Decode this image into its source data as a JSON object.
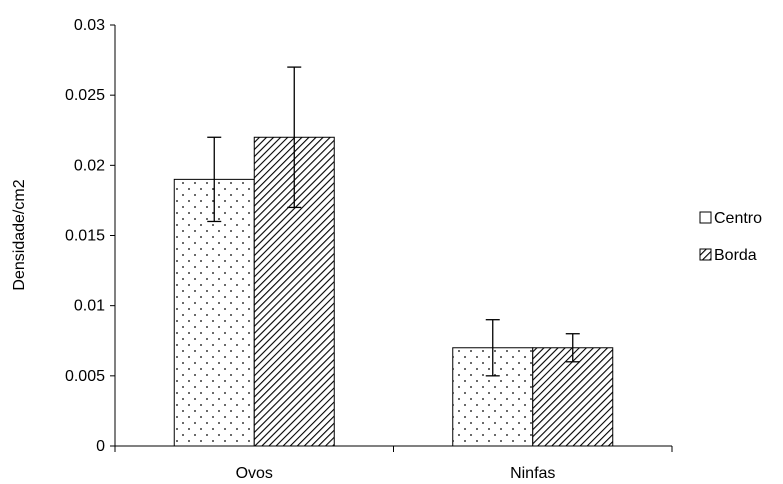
{
  "chart_data": {
    "type": "bar",
    "title": "",
    "xlabel": "",
    "ylabel": "Densidade/cm2",
    "categories": [
      "Ovos",
      "Ninfas"
    ],
    "ylim": [
      0,
      0.03
    ],
    "yticks": [
      "0",
      "0.005",
      "0.01",
      "0.015",
      "0.02",
      "0.025",
      "0.03"
    ],
    "grid": false,
    "legend": "right",
    "series": [
      {
        "name": "Centro",
        "pattern": "dots",
        "values": [
          0.019,
          0.007
        ],
        "error_low": [
          0.016,
          0.005
        ],
        "error_high": [
          0.022,
          0.009
        ]
      },
      {
        "name": "Borda",
        "pattern": "diagonal-hatch",
        "values": [
          0.022,
          0.007
        ],
        "error_low": [
          0.017,
          0.006
        ],
        "error_high": [
          0.027,
          0.008
        ]
      }
    ],
    "colors": {
      "bar_fill": "#ffffff",
      "bar_stroke": "#000000",
      "pattern_ink": "#000000"
    }
  }
}
